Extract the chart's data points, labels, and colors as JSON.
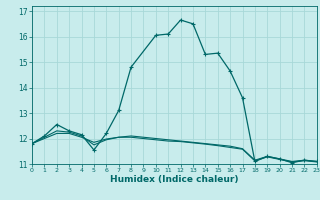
{
  "title": "",
  "xlabel": "Humidex (Indice chaleur)",
  "ylabel": "",
  "bg_color": "#c8ecec",
  "grid_color": "#a8d8d8",
  "line_color": "#006868",
  "xlim": [
    0,
    23
  ],
  "ylim": [
    11,
    17.2
  ],
  "xticks": [
    0,
    1,
    2,
    3,
    4,
    5,
    6,
    7,
    8,
    9,
    10,
    11,
    12,
    13,
    14,
    15,
    16,
    17,
    18,
    19,
    20,
    21,
    22,
    23
  ],
  "yticks": [
    11,
    12,
    13,
    14,
    15,
    16,
    17
  ],
  "series1": [
    [
      0,
      11.8
    ],
    [
      1,
      12.1
    ],
    [
      2,
      12.55
    ],
    [
      3,
      12.3
    ],
    [
      4,
      12.15
    ],
    [
      5,
      11.55
    ],
    [
      6,
      12.2
    ],
    [
      7,
      13.1
    ],
    [
      8,
      14.8
    ],
    [
      10,
      16.05
    ],
    [
      11,
      16.1
    ],
    [
      12,
      16.65
    ],
    [
      13,
      16.5
    ],
    [
      14,
      15.3
    ],
    [
      15,
      15.35
    ],
    [
      16,
      14.65
    ],
    [
      17,
      13.6
    ],
    [
      18,
      11.1
    ],
    [
      19,
      11.3
    ],
    [
      20,
      11.2
    ],
    [
      21,
      11.05
    ],
    [
      22,
      11.15
    ],
    [
      23,
      11.1
    ]
  ],
  "series2": [
    [
      0,
      11.8
    ],
    [
      1,
      12.05
    ],
    [
      2,
      12.3
    ],
    [
      3,
      12.25
    ],
    [
      4,
      12.1
    ],
    [
      5,
      11.75
    ],
    [
      6,
      11.95
    ],
    [
      7,
      12.05
    ],
    [
      8,
      12.1
    ],
    [
      9,
      12.05
    ],
    [
      10,
      12.0
    ],
    [
      11,
      11.95
    ],
    [
      12,
      11.9
    ],
    [
      13,
      11.85
    ],
    [
      14,
      11.8
    ],
    [
      15,
      11.75
    ],
    [
      16,
      11.7
    ],
    [
      17,
      11.6
    ],
    [
      18,
      11.15
    ],
    [
      19,
      11.3
    ],
    [
      20,
      11.2
    ],
    [
      21,
      11.1
    ],
    [
      22,
      11.15
    ],
    [
      23,
      11.1
    ]
  ],
  "series3": [
    [
      0,
      11.8
    ],
    [
      1,
      12.0
    ],
    [
      2,
      12.2
    ],
    [
      3,
      12.2
    ],
    [
      4,
      12.05
    ],
    [
      5,
      11.85
    ],
    [
      6,
      11.98
    ],
    [
      7,
      12.05
    ],
    [
      8,
      12.05
    ],
    [
      9,
      12.0
    ],
    [
      10,
      11.95
    ],
    [
      11,
      11.9
    ],
    [
      12,
      11.88
    ],
    [
      13,
      11.83
    ],
    [
      14,
      11.78
    ],
    [
      15,
      11.72
    ],
    [
      16,
      11.65
    ],
    [
      17,
      11.58
    ],
    [
      18,
      11.12
    ],
    [
      19,
      11.28
    ],
    [
      20,
      11.18
    ],
    [
      21,
      11.08
    ],
    [
      22,
      11.13
    ],
    [
      23,
      11.08
    ]
  ]
}
